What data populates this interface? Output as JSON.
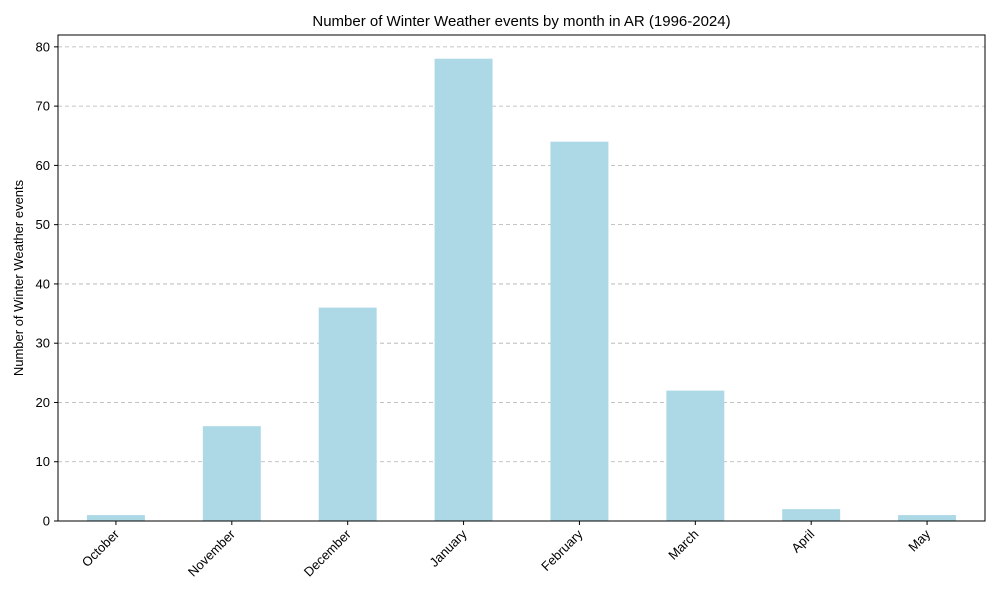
{
  "chart_data": {
    "type": "bar",
    "title": "Number of Winter Weather events by month in AR (1996-2024)",
    "xlabel": "",
    "ylabel": "Number of Winter Weather events",
    "categories": [
      "October",
      "November",
      "December",
      "January",
      "February",
      "March",
      "April",
      "May"
    ],
    "values": [
      1,
      16,
      36,
      78,
      64,
      22,
      2,
      1
    ],
    "ylim": [
      0,
      82
    ],
    "yticks": [
      0,
      10,
      20,
      30,
      40,
      50,
      60,
      70,
      80
    ],
    "grid": "y-dashed",
    "bar_color": "#add8e6"
  }
}
